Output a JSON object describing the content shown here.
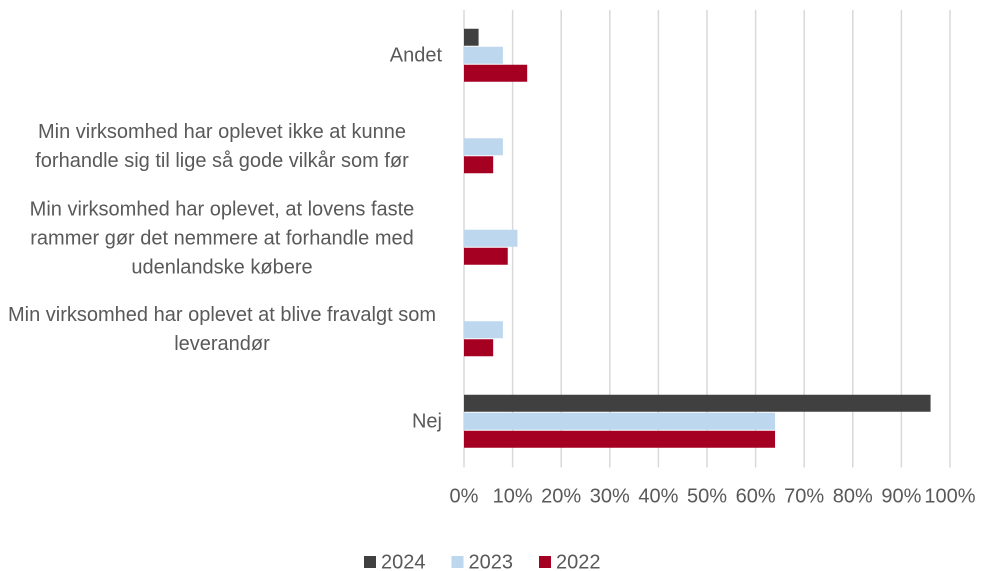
{
  "chart_data": {
    "type": "bar",
    "orientation": "horizontal",
    "categories": [
      "Andet",
      "Min virksomhed har oplevet ikke at kunne forhandle sig til lige så gode vilkår som før",
      "Min virksomhed har oplevet, at lovens faste rammer gør det nemmere at forhandle med udenlandske købere",
      "Min virksomhed har oplevet at blive fravalgt som leverandør",
      "Nej"
    ],
    "series": [
      {
        "name": "2024",
        "color": "#404040",
        "values": [
          3,
          0,
          0,
          0,
          96
        ]
      },
      {
        "name": "2023",
        "color": "#bdd7ee",
        "values": [
          8,
          8,
          11,
          8,
          64
        ]
      },
      {
        "name": "2022",
        "color": "#a50021",
        "values": [
          13,
          6,
          9,
          6,
          64
        ]
      }
    ],
    "xlim": [
      0,
      100
    ],
    "xticks": [
      {
        "value": 0,
        "label": "0%"
      },
      {
        "value": 10,
        "label": "10%"
      },
      {
        "value": 20,
        "label": "20%"
      },
      {
        "value": 30,
        "label": "30%"
      },
      {
        "value": 40,
        "label": "40%"
      },
      {
        "value": 50,
        "label": "50%"
      },
      {
        "value": 60,
        "label": "60%"
      },
      {
        "value": 70,
        "label": "70%"
      },
      {
        "value": 80,
        "label": "80%"
      },
      {
        "value": 90,
        "label": "90%"
      },
      {
        "value": 100,
        "label": "100%"
      }
    ],
    "grid": true,
    "legend": "bottom"
  }
}
